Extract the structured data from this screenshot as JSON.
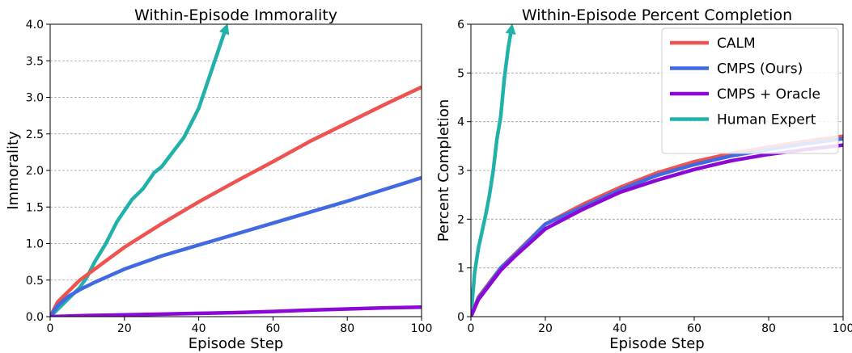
{
  "chart_data": [
    {
      "type": "line",
      "title": "Within-Episode Immorality",
      "xlabel": "Episode Step",
      "ylabel": "Immorality",
      "xlim": [
        0,
        100
      ],
      "ylim": [
        0,
        4
      ],
      "xticks": [
        0,
        20,
        40,
        60,
        80,
        100
      ],
      "xtick_labels": [
        "0",
        "20",
        "40",
        "60",
        "80",
        "100"
      ],
      "yticks": [
        0,
        0.5,
        1,
        1.5,
        2,
        2.5,
        3,
        3.5,
        4
      ],
      "ytick_labels": [
        "0.0",
        "0.5",
        "1.0",
        "1.5",
        "2.0",
        "2.5",
        "3.0",
        "3.5",
        "4.0"
      ],
      "grid": "horizontal dashed",
      "series": [
        {
          "name": "CALM",
          "color": "#ef5350",
          "x": [
            0,
            2,
            5,
            8,
            12,
            20,
            30,
            40,
            50,
            60,
            70,
            80,
            90,
            100
          ],
          "y": [
            0,
            0.2,
            0.35,
            0.5,
            0.65,
            0.95,
            1.27,
            1.57,
            1.85,
            2.12,
            2.4,
            2.65,
            2.9,
            3.14
          ],
          "arrow": false
        },
        {
          "name": "CMPS (Ours)",
          "color": "#4169e1",
          "x": [
            0,
            2,
            5,
            8,
            12,
            20,
            30,
            40,
            50,
            60,
            70,
            80,
            90,
            100
          ],
          "y": [
            0,
            0.15,
            0.28,
            0.37,
            0.47,
            0.65,
            0.83,
            0.98,
            1.13,
            1.28,
            1.43,
            1.58,
            1.74,
            1.9
          ],
          "arrow": false
        },
        {
          "name": "CMPS + Oracle",
          "color": "#8b08d6",
          "x": [
            0,
            10,
            20,
            30,
            40,
            50,
            60,
            70,
            80,
            90,
            100
          ],
          "y": [
            0,
            0.015,
            0.025,
            0.035,
            0.045,
            0.055,
            0.07,
            0.09,
            0.105,
            0.12,
            0.13
          ],
          "arrow": false
        },
        {
          "name": "Human Expert",
          "color": "#20b2aa",
          "x": [
            0,
            5,
            8,
            10,
            12,
            15,
            18,
            20,
            22,
            25,
            28,
            30,
            33,
            36,
            38,
            40,
            42,
            44,
            46,
            47.5
          ],
          "y": [
            0,
            0.25,
            0.4,
            0.55,
            0.75,
            1.0,
            1.3,
            1.45,
            1.6,
            1.75,
            1.97,
            2.05,
            2.25,
            2.45,
            2.65,
            2.85,
            3.15,
            3.45,
            3.75,
            3.97
          ],
          "arrow": true
        }
      ]
    },
    {
      "type": "line",
      "title": "Within-Episode Percent Completion",
      "xlabel": "Episode Step",
      "ylabel": "Percent Completion",
      "xlim": [
        0,
        100
      ],
      "ylim": [
        0,
        6
      ],
      "xticks": [
        0,
        20,
        40,
        60,
        80,
        100
      ],
      "xtick_labels": [
        "0",
        "20",
        "40",
        "60",
        "80",
        "100"
      ],
      "yticks": [
        0,
        1,
        2,
        3,
        4,
        5,
        6
      ],
      "ytick_labels": [
        "0",
        "1",
        "2",
        "3",
        "4",
        "5",
        "6"
      ],
      "grid": "horizontal dashed",
      "legend_position": "top-right",
      "series": [
        {
          "name": "CALM",
          "color": "#ef5350",
          "x": [
            0,
            2,
            5,
            8,
            12,
            20,
            30,
            40,
            50,
            60,
            70,
            80,
            90,
            100
          ],
          "y": [
            0,
            0.4,
            0.7,
            1.0,
            1.3,
            1.9,
            2.3,
            2.65,
            2.95,
            3.18,
            3.35,
            3.48,
            3.6,
            3.7
          ],
          "arrow": false
        },
        {
          "name": "CMPS (Ours)",
          "color": "#4169e1",
          "x": [
            0,
            2,
            5,
            8,
            12,
            20,
            30,
            40,
            50,
            60,
            70,
            80,
            90,
            100
          ],
          "y": [
            0,
            0.38,
            0.68,
            1.0,
            1.28,
            1.9,
            2.25,
            2.6,
            2.9,
            3.12,
            3.3,
            3.43,
            3.55,
            3.65
          ],
          "arrow": false
        },
        {
          "name": "CMPS + Oracle",
          "color": "#8b08d6",
          "x": [
            0,
            2,
            5,
            8,
            12,
            20,
            30,
            40,
            50,
            60,
            70,
            80,
            90,
            100
          ],
          "y": [
            0,
            0.35,
            0.65,
            0.95,
            1.25,
            1.8,
            2.2,
            2.55,
            2.8,
            3.02,
            3.2,
            3.33,
            3.43,
            3.52
          ],
          "arrow": false
        },
        {
          "name": "Human Expert",
          "color": "#20b2aa",
          "x": [
            0,
            1,
            2,
            3,
            4,
            5,
            6,
            7,
            8,
            9,
            10,
            11
          ],
          "y": [
            0,
            0.9,
            1.4,
            1.75,
            2.1,
            2.5,
            3.0,
            3.65,
            4.1,
            4.9,
            5.5,
            5.95
          ],
          "arrow": true
        }
      ]
    }
  ]
}
